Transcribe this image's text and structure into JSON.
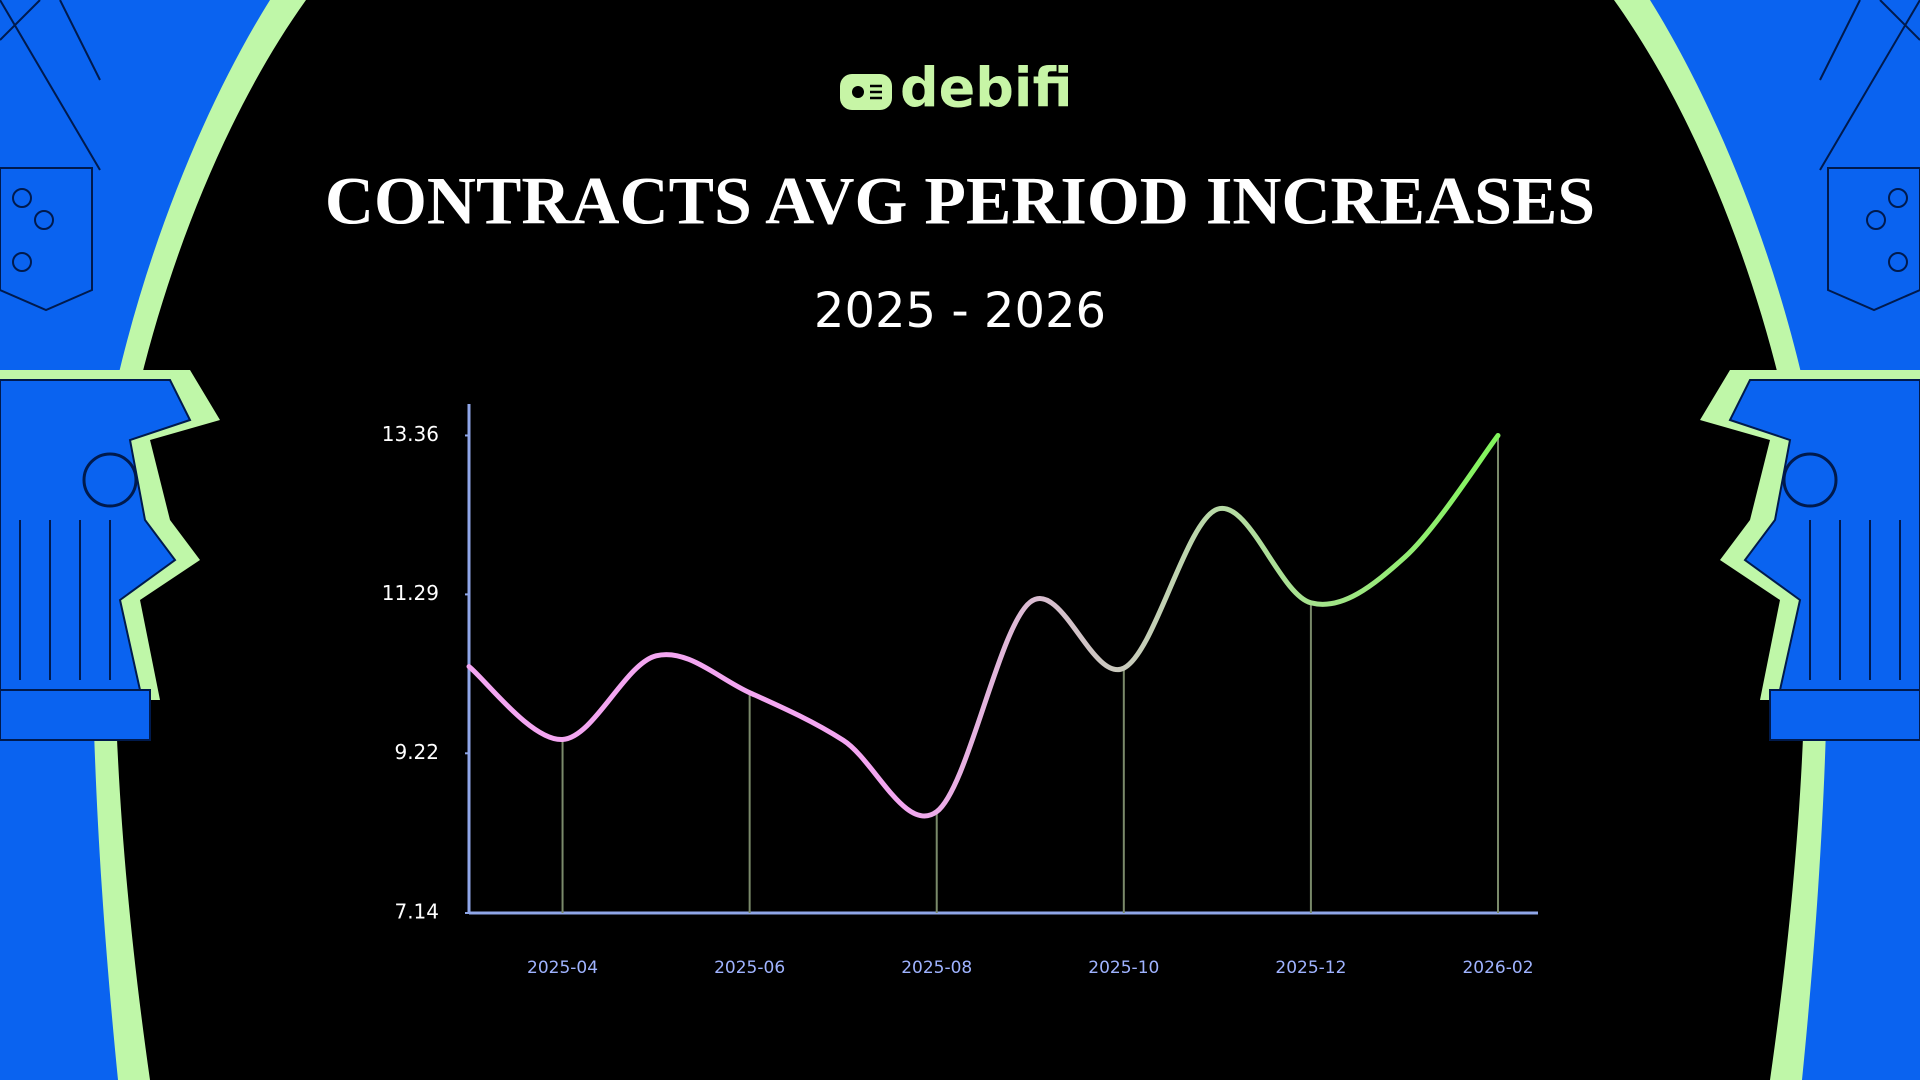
{
  "brand": "debifi",
  "chart_data": {
    "type": "line",
    "title": "CONTRACTS AVG PERIOD INCREASES",
    "subtitle": "2025 - 2026",
    "categories": [
      null,
      "2025-04",
      null,
      "2025-06",
      null,
      "2025-08",
      null,
      "2025-10",
      null,
      "2025-12",
      null,
      "2026-02"
    ],
    "values": [
      10.35,
      9.4,
      10.49,
      10.01,
      9.39,
      8.46,
      11.19,
      10.33,
      12.4,
      11.18,
      11.77,
      13.36
    ],
    "ylim": [
      7.14,
      13.77
    ],
    "yticks": [
      7.14,
      9.22,
      11.29,
      13.36
    ],
    "colors": [
      "#f3a6f1",
      "#82f55c"
    ],
    "drop_lines": true
  }
}
